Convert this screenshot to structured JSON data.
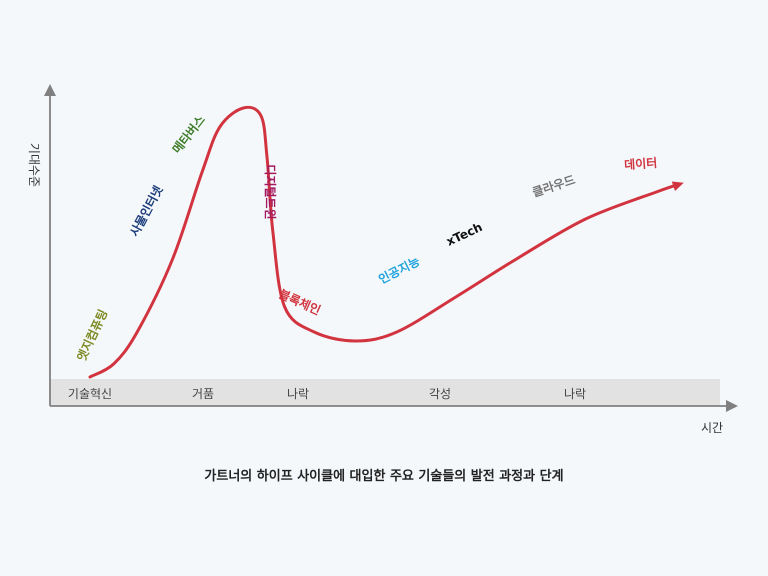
{
  "chart_data": {
    "type": "line",
    "title": "",
    "xlabel": "시간",
    "ylabel": "기대수준",
    "phases": [
      "기술혁신",
      "거품",
      "나락",
      "각성",
      "나락"
    ],
    "series": [
      {
        "values": [
          [
            0,
            0
          ],
          [
            4,
            13
          ],
          [
            8,
            45
          ],
          [
            14,
            118
          ],
          [
            19,
            205
          ],
          [
            22,
            250
          ],
          [
            26,
            269
          ],
          [
            29,
            261
          ],
          [
            30,
            220
          ],
          [
            31,
            145
          ],
          [
            33,
            70
          ],
          [
            38,
            45
          ],
          [
            45,
            36
          ],
          [
            52,
            45
          ],
          [
            62,
            80
          ],
          [
            72,
            117
          ],
          [
            84,
            158
          ],
          [
            96,
            185
          ],
          [
            100,
            193
          ]
        ]
      }
    ],
    "annotations": [
      {
        "label": "엣지컴퓨팅",
        "color": "#7e8a24"
      },
      {
        "label": "사물인터넷",
        "color": "#1c3c7a"
      },
      {
        "label": "메타버스",
        "color": "#3f7d2a"
      },
      {
        "label": "디지털트윈",
        "color": "#a3185f"
      },
      {
        "label": "블록체인",
        "color": "#d2343f"
      },
      {
        "label": "인공지능",
        "color": "#1fa3dc"
      },
      {
        "label": "xTech",
        "color": "#111111"
      },
      {
        "label": "클라우드",
        "color": "#737373"
      },
      {
        "label": "데이터",
        "color": "#d2343f"
      }
    ],
    "grid": false,
    "legend": "none"
  },
  "caption": "가트너의 하이프 사이클에 대입한 주요 기술들의 발전 과정과 단계",
  "colors": {
    "curve": "#d2343f",
    "axis": "#808080",
    "band": "#e2e2e2"
  }
}
